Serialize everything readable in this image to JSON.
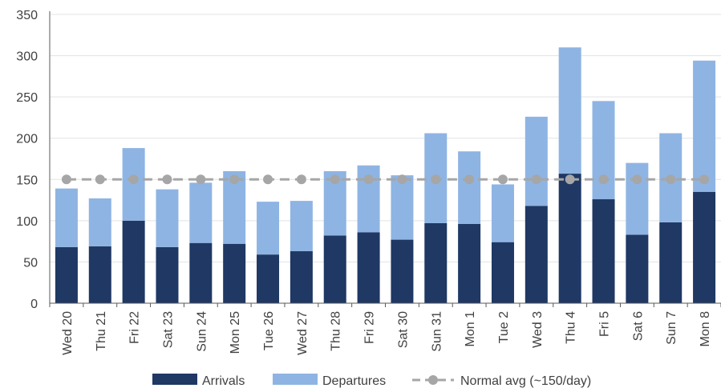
{
  "chart_data": {
    "type": "bar",
    "stacked": true,
    "categories": [
      "Wed 20",
      "Thu 21",
      "Fri 22",
      "Sat 23",
      "Sun 24",
      "Mon 25",
      "Tue 26",
      "Wed 27",
      "Thu 28",
      "Fri 29",
      "Sat 30",
      "Sun 31",
      "Mon 1",
      "Tue 2",
      "Wed 3",
      "Thu 4",
      "Fri 5",
      "Sat 6",
      "Sun 7",
      "Mon 8"
    ],
    "series": [
      {
        "name": "Arrivals",
        "color": "#1f3864",
        "values": [
          68,
          69,
          100,
          68,
          73,
          72,
          59,
          63,
          82,
          86,
          77,
          97,
          96,
          74,
          118,
          157,
          126,
          83,
          98,
          135
        ]
      },
      {
        "name": "Departures",
        "color": "#8eb4e3",
        "values": [
          71,
          58,
          88,
          70,
          73,
          88,
          64,
          61,
          78,
          81,
          78,
          109,
          88,
          70,
          108,
          153,
          119,
          87,
          108,
          159
        ]
      }
    ],
    "reference_line": {
      "name": "Normal avg (~150/day)",
      "value": 150,
      "color": "#a6a6a6"
    },
    "ylim": [
      0,
      350
    ],
    "yticks": [
      0,
      50,
      100,
      150,
      200,
      250,
      300,
      350
    ],
    "grid": true,
    "legend_position": "bottom"
  }
}
